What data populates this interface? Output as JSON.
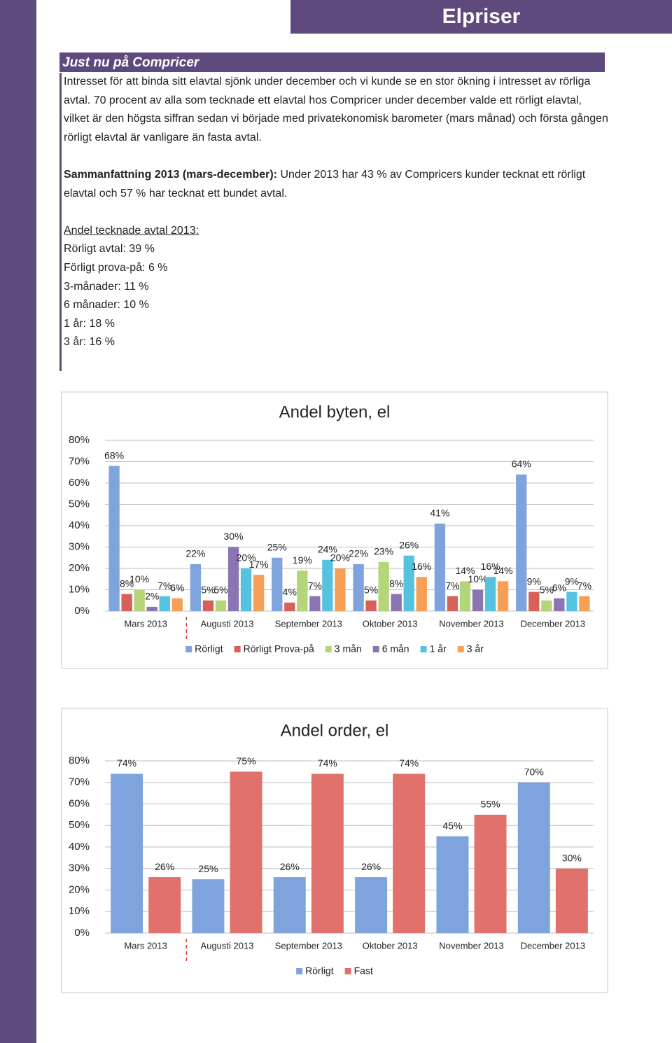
{
  "header": {
    "title": "Elpriser"
  },
  "section": {
    "heading": "Just nu på Compricer",
    "paragraph": "Intresset för att binda sitt elavtal sjönk under december och vi kunde se en stor ökning i intresset av rörliga avtal. 70 procent  av alla som tecknade ett elavtal hos Compricer under december valde ett rörligt elavtal, vilket är den högsta siffran sedan vi började med privatekonomisk barometer (mars månad) och första gången rörligt elavtal är vanligare än fasta avtal.",
    "summary_label": "Sammanfattning 2013 (mars-december):",
    "summary_text": "Under 2013 har 43 % av Compricers kunder tecknat ett rörligt elavtal och 57 % har tecknat ett bundet avtal.",
    "list_heading": "Andel tecknade avtal 2013:",
    "list": [
      "Rörligt avtal: 39 %",
      "Förligt prova-på: 6 %",
      "3-månader: 11 %",
      "6 månader: 10 %",
      "1 år: 18 %",
      "3 år: 16 %"
    ]
  },
  "chart_data": [
    {
      "type": "bar",
      "title": "Andel byten, el",
      "categories": [
        "Mars 2013",
        "Augusti 2013",
        "September 2013",
        "Oktober 2013",
        "November 2013",
        "December 2013"
      ],
      "series": [
        {
          "name": "Rörligt",
          "color": "#7fa3dc",
          "values": [
            68,
            22,
            25,
            22,
            41,
            64
          ],
          "value_labels": [
            "68%",
            "22%",
            "25%",
            "22%",
            "41%",
            "64%"
          ]
        },
        {
          "name": "Rörligt Prova-på",
          "color": "#d8605a",
          "values": [
            8,
            5,
            4,
            5,
            7,
            9
          ],
          "value_labels": [
            "8%",
            "5%",
            "4%",
            "5%",
            "7%",
            "9%"
          ]
        },
        {
          "name": "3 mån",
          "color": "#b4d57a",
          "values": [
            10,
            5,
            19,
            23,
            14,
            5
          ],
          "value_labels": [
            "10%",
            "5%",
            "19%",
            "23%",
            "14%",
            "5%"
          ]
        },
        {
          "name": "6 mån",
          "color": "#8b74b2",
          "values": [
            2,
            30,
            7,
            8,
            10,
            6
          ],
          "value_labels": [
            "2%",
            "30%",
            "7%",
            "8%",
            "10%",
            "6%"
          ]
        },
        {
          "name": "1 år",
          "color": "#55c2df",
          "values": [
            7,
            20,
            24,
            26,
            16,
            9
          ],
          "value_labels": [
            "7%",
            "20%",
            "24%",
            "26%",
            "16%",
            "9%"
          ]
        },
        {
          "name": "3 år",
          "color": "#f7a055",
          "values": [
            6,
            17,
            20,
            16,
            14,
            7
          ],
          "value_labels": [
            "6%",
            "17%",
            "20%",
            "16%",
            "14%",
            "7%"
          ]
        }
      ],
      "ylim": [
        0,
        80
      ],
      "yticks": [
        {
          "value": 0,
          "label": "0%"
        },
        {
          "value": 10,
          "label": "10%"
        },
        {
          "value": 20,
          "label": "20%"
        },
        {
          "value": 30,
          "label": "30%"
        },
        {
          "value": 40,
          "label": "40%"
        },
        {
          "value": 50,
          "label": "50%"
        },
        {
          "value": 60,
          "label": "60%"
        },
        {
          "value": 70,
          "label": "70%"
        },
        {
          "value": 80,
          "label": "80%"
        }
      ],
      "grid": true,
      "legend": "bottom"
    },
    {
      "type": "bar",
      "title": "Andel order, el",
      "categories": [
        "Mars 2013",
        "Augusti 2013",
        "September 2013",
        "Oktober 2013",
        "November 2013",
        "December 2013"
      ],
      "series": [
        {
          "name": "Rörligt",
          "color": "#7fa3dc",
          "values": [
            74,
            25,
            26,
            26,
            45,
            70
          ],
          "value_labels": [
            "74%",
            "25%",
            "26%",
            "26%",
            "45%",
            "70%"
          ]
        },
        {
          "name": "Fast",
          "color": "#e0716c",
          "values": [
            26,
            75,
            74,
            74,
            55,
            30
          ],
          "value_labels": [
            "26%",
            "75%",
            "74%",
            "74%",
            "55%",
            "30%"
          ]
        }
      ],
      "ylim": [
        0,
        80
      ],
      "yticks": [
        {
          "value": 0,
          "label": "0%"
        },
        {
          "value": 10,
          "label": "10%"
        },
        {
          "value": 20,
          "label": "20%"
        },
        {
          "value": 30,
          "label": "30%"
        },
        {
          "value": 40,
          "label": "40%"
        },
        {
          "value": 50,
          "label": "50%"
        },
        {
          "value": 60,
          "label": "60%"
        },
        {
          "value": 70,
          "label": "70%"
        },
        {
          "value": 80,
          "label": "80%"
        }
      ],
      "grid": true,
      "legend": "bottom"
    }
  ]
}
